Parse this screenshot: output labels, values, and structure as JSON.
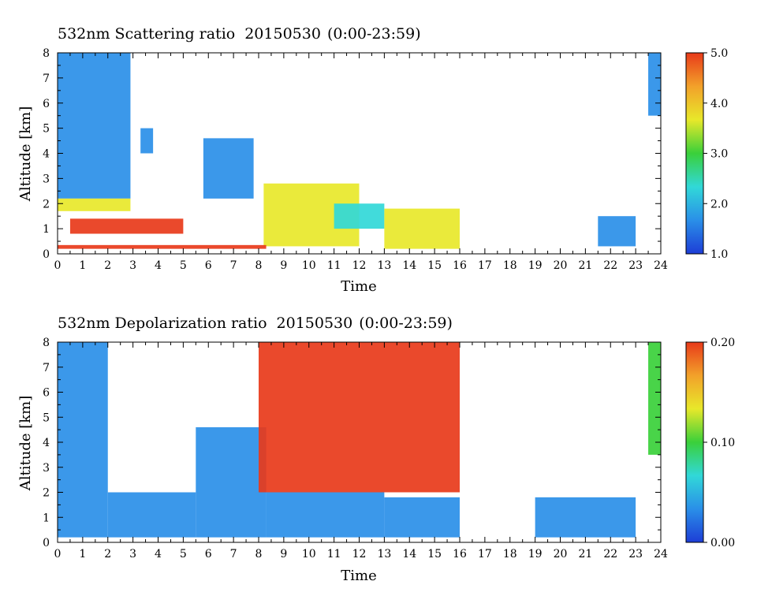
{
  "chart_data": [
    {
      "type": "heatmap",
      "title": "532nm Scattering ratio",
      "date": "20150530",
      "time_range": "(0:00-23:59)",
      "xlabel": "Time",
      "ylabel": "Altitude [km]",
      "xlim": [
        0,
        24
      ],
      "ylim": [
        0,
        8
      ],
      "xticks": [
        0,
        1,
        2,
        3,
        4,
        5,
        6,
        7,
        8,
        9,
        10,
        11,
        12,
        13,
        14,
        15,
        16,
        17,
        18,
        19,
        20,
        21,
        22,
        23,
        24
      ],
      "yticks": [
        0,
        1,
        2,
        3,
        4,
        5,
        6,
        7,
        8
      ],
      "colorbar": {
        "range": [
          1.0,
          5.0
        ],
        "ticks": [
          "1.0",
          "2.0",
          "3.0",
          "4.0",
          "5.0"
        ],
        "tick_values": [
          1.0,
          2.0,
          3.0,
          4.0,
          5.0
        ],
        "colors": [
          "#1d3dd6",
          "#2a8fe8",
          "#31d8d8",
          "#3ad03a",
          "#e8e82a",
          "#f2a12a",
          "#e83a1a"
        ]
      },
      "regions": [
        {
          "t0": 0.0,
          "t1": 2.9,
          "z0": 2.2,
          "z1": 8.0,
          "value": 1.7
        },
        {
          "t0": 0.0,
          "t1": 2.9,
          "z0": 1.7,
          "z1": 2.2,
          "value": 3.8
        },
        {
          "t0": 3.3,
          "t1": 3.8,
          "z0": 4.0,
          "z1": 5.0,
          "value": 1.8
        },
        {
          "t0": 5.8,
          "t1": 7.8,
          "z0": 2.2,
          "z1": 4.6,
          "value": 1.6
        },
        {
          "t0": 8.2,
          "t1": 12.0,
          "z0": 0.3,
          "z1": 2.8,
          "value": 3.9
        },
        {
          "t0": 11.0,
          "t1": 13.0,
          "z0": 1.0,
          "z1": 2.0,
          "value": 2.0
        },
        {
          "t0": 13.0,
          "t1": 16.0,
          "z0": 0.2,
          "z1": 1.8,
          "value": 3.5
        },
        {
          "t0": 21.5,
          "t1": 23.0,
          "z0": 0.3,
          "z1": 1.5,
          "value": 1.6
        },
        {
          "t0": 23.5,
          "t1": 24.0,
          "z0": 5.5,
          "z1": 8.0,
          "value": 1.8
        },
        {
          "t0": 0.5,
          "t1": 5.0,
          "z0": 0.8,
          "z1": 1.4,
          "value": 4.8
        },
        {
          "t0": 0.0,
          "t1": 8.3,
          "z0": 0.2,
          "z1": 0.35,
          "value": 4.9
        }
      ]
    },
    {
      "type": "heatmap",
      "title": "532nm Depolarization ratio",
      "date": "20150530",
      "time_range": "(0:00-23:59)",
      "xlabel": "Time",
      "ylabel": "Altitude [km]",
      "xlim": [
        0,
        24
      ],
      "ylim": [
        0,
        8
      ],
      "xticks": [
        0,
        1,
        2,
        3,
        4,
        5,
        6,
        7,
        8,
        9,
        10,
        11,
        12,
        13,
        14,
        15,
        16,
        17,
        18,
        19,
        20,
        21,
        22,
        23,
        24
      ],
      "yticks": [
        0,
        1,
        2,
        3,
        4,
        5,
        6,
        7,
        8
      ],
      "colorbar": {
        "range": [
          0.0,
          0.2
        ],
        "ticks": [
          "0.00",
          "0.10",
          "0.20"
        ],
        "tick_values": [
          0.0,
          0.1,
          0.2
        ],
        "colors": [
          "#1d3dd6",
          "#2a8fe8",
          "#31d8d8",
          "#3ad03a",
          "#e8e82a",
          "#f2a12a",
          "#e83a1a"
        ]
      },
      "regions": [
        {
          "t0": 0.0,
          "t1": 2.0,
          "z0": 0.2,
          "z1": 8.0,
          "value": 0.04
        },
        {
          "t0": 2.0,
          "t1": 5.5,
          "z0": 0.2,
          "z1": 2.0,
          "value": 0.03
        },
        {
          "t0": 5.5,
          "t1": 8.3,
          "z0": 0.2,
          "z1": 4.6,
          "value": 0.03
        },
        {
          "t0": 8.3,
          "t1": 13.0,
          "z0": 0.2,
          "z1": 2.0,
          "value": 0.03
        },
        {
          "t0": 13.0,
          "t1": 16.0,
          "z0": 0.2,
          "z1": 1.8,
          "value": 0.035
        },
        {
          "t0": 19.0,
          "t1": 23.0,
          "z0": 0.2,
          "z1": 1.8,
          "value": 0.03
        },
        {
          "t0": 8.0,
          "t1": 16.0,
          "z0": 2.0,
          "z1": 8.0,
          "value": 0.19
        },
        {
          "t0": 23.5,
          "t1": 24.0,
          "z0": 3.5,
          "z1": 8.0,
          "value": 0.09
        }
      ]
    }
  ]
}
